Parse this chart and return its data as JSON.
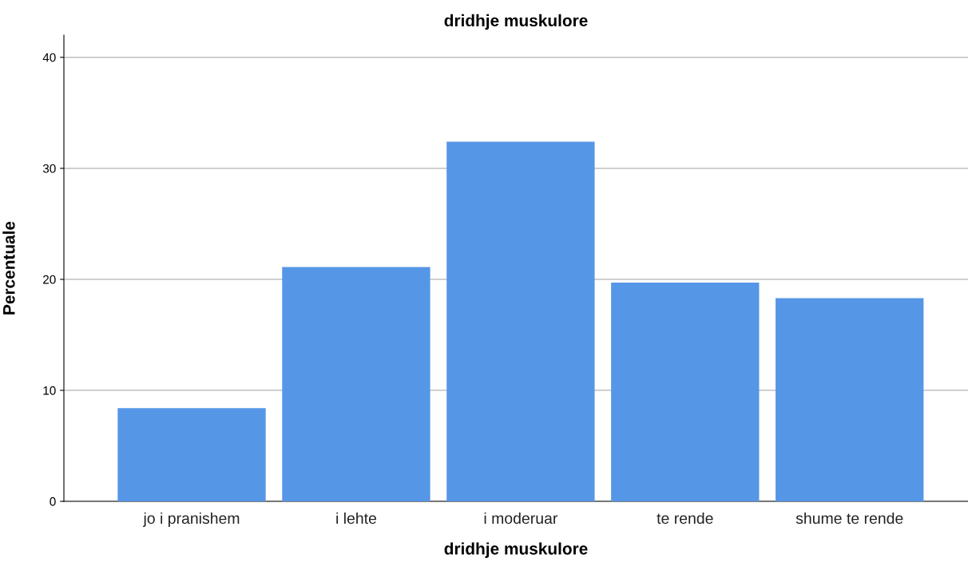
{
  "chart_data": {
    "type": "bar",
    "title": "dridhje muskulore",
    "xlabel": "dridhje muskulore",
    "ylabel": "Percentuale",
    "categories": [
      "jo i pranishem",
      "i lehte",
      "i moderuar",
      "te rende",
      "shume te rende"
    ],
    "values": [
      8.4,
      21.1,
      32.4,
      19.7,
      18.3
    ],
    "color": "#5596e6",
    "ylim": [
      0,
      42
    ],
    "yticks": [
      0,
      10,
      20,
      30,
      40
    ],
    "grid": "y",
    "legend": false
  }
}
